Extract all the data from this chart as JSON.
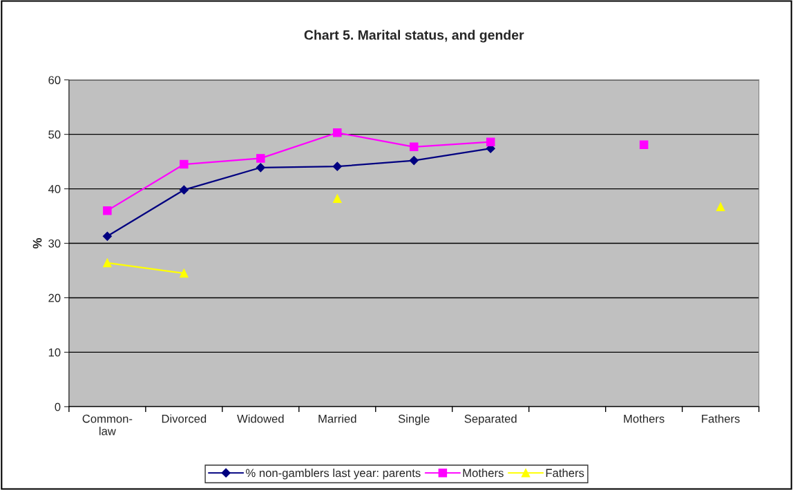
{
  "chart_data": {
    "type": "line",
    "title": "Chart 5. Marital status, and gender",
    "ylabel": "%",
    "categories": [
      "Common-\nlaw",
      "Divorced",
      "Widowed",
      "Married",
      "Single",
      "Separated",
      null,
      "Mothers",
      "Fathers"
    ],
    "series": [
      {
        "name": "% non-gamblers last year: parents",
        "color": "#000080",
        "marker": "diamond",
        "values": [
          31.3,
          39.8,
          43.9,
          44.1,
          45.2,
          47.4,
          null,
          null,
          null
        ]
      },
      {
        "name": "Mothers",
        "color": "#ff00ff",
        "marker": "square",
        "values": [
          36.0,
          44.5,
          45.6,
          50.3,
          47.7,
          48.6,
          null,
          48.1,
          null
        ]
      },
      {
        "name": "Fathers",
        "color": "#ffff00",
        "marker": "triangle",
        "values": [
          26.4,
          24.5,
          null,
          38.2,
          null,
          null,
          null,
          null,
          36.7
        ]
      }
    ],
    "ylim": [
      0,
      60
    ],
    "yticks": [
      0,
      10,
      20,
      30,
      40,
      50,
      60
    ],
    "grid": "y",
    "legend": "bottom",
    "line_style": "solid"
  }
}
